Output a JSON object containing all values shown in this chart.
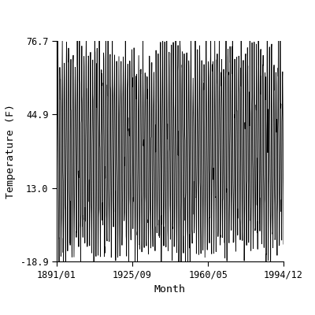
{
  "title": "",
  "xlabel": "Month",
  "ylabel": "Temperature (F)",
  "start_year": 1891,
  "start_month": 1,
  "end_year": 1994,
  "end_month": 12,
  "ylim": [
    -18.9,
    76.7
  ],
  "yticks": [
    -18.9,
    13.0,
    44.9,
    76.7
  ],
  "xtick_dates": [
    "1891/01",
    "1925/09",
    "1960/05",
    "1994/12"
  ],
  "xtick_values_months": [
    0,
    416,
    832,
    1247
  ],
  "seasonal_high": 68.0,
  "seasonal_low": -10.5,
  "summer_peak_month": 7,
  "line_color": "#000000",
  "line_width": 0.6,
  "background_color": "#ffffff",
  "font_family": "monospace",
  "font_size": 8.5
}
